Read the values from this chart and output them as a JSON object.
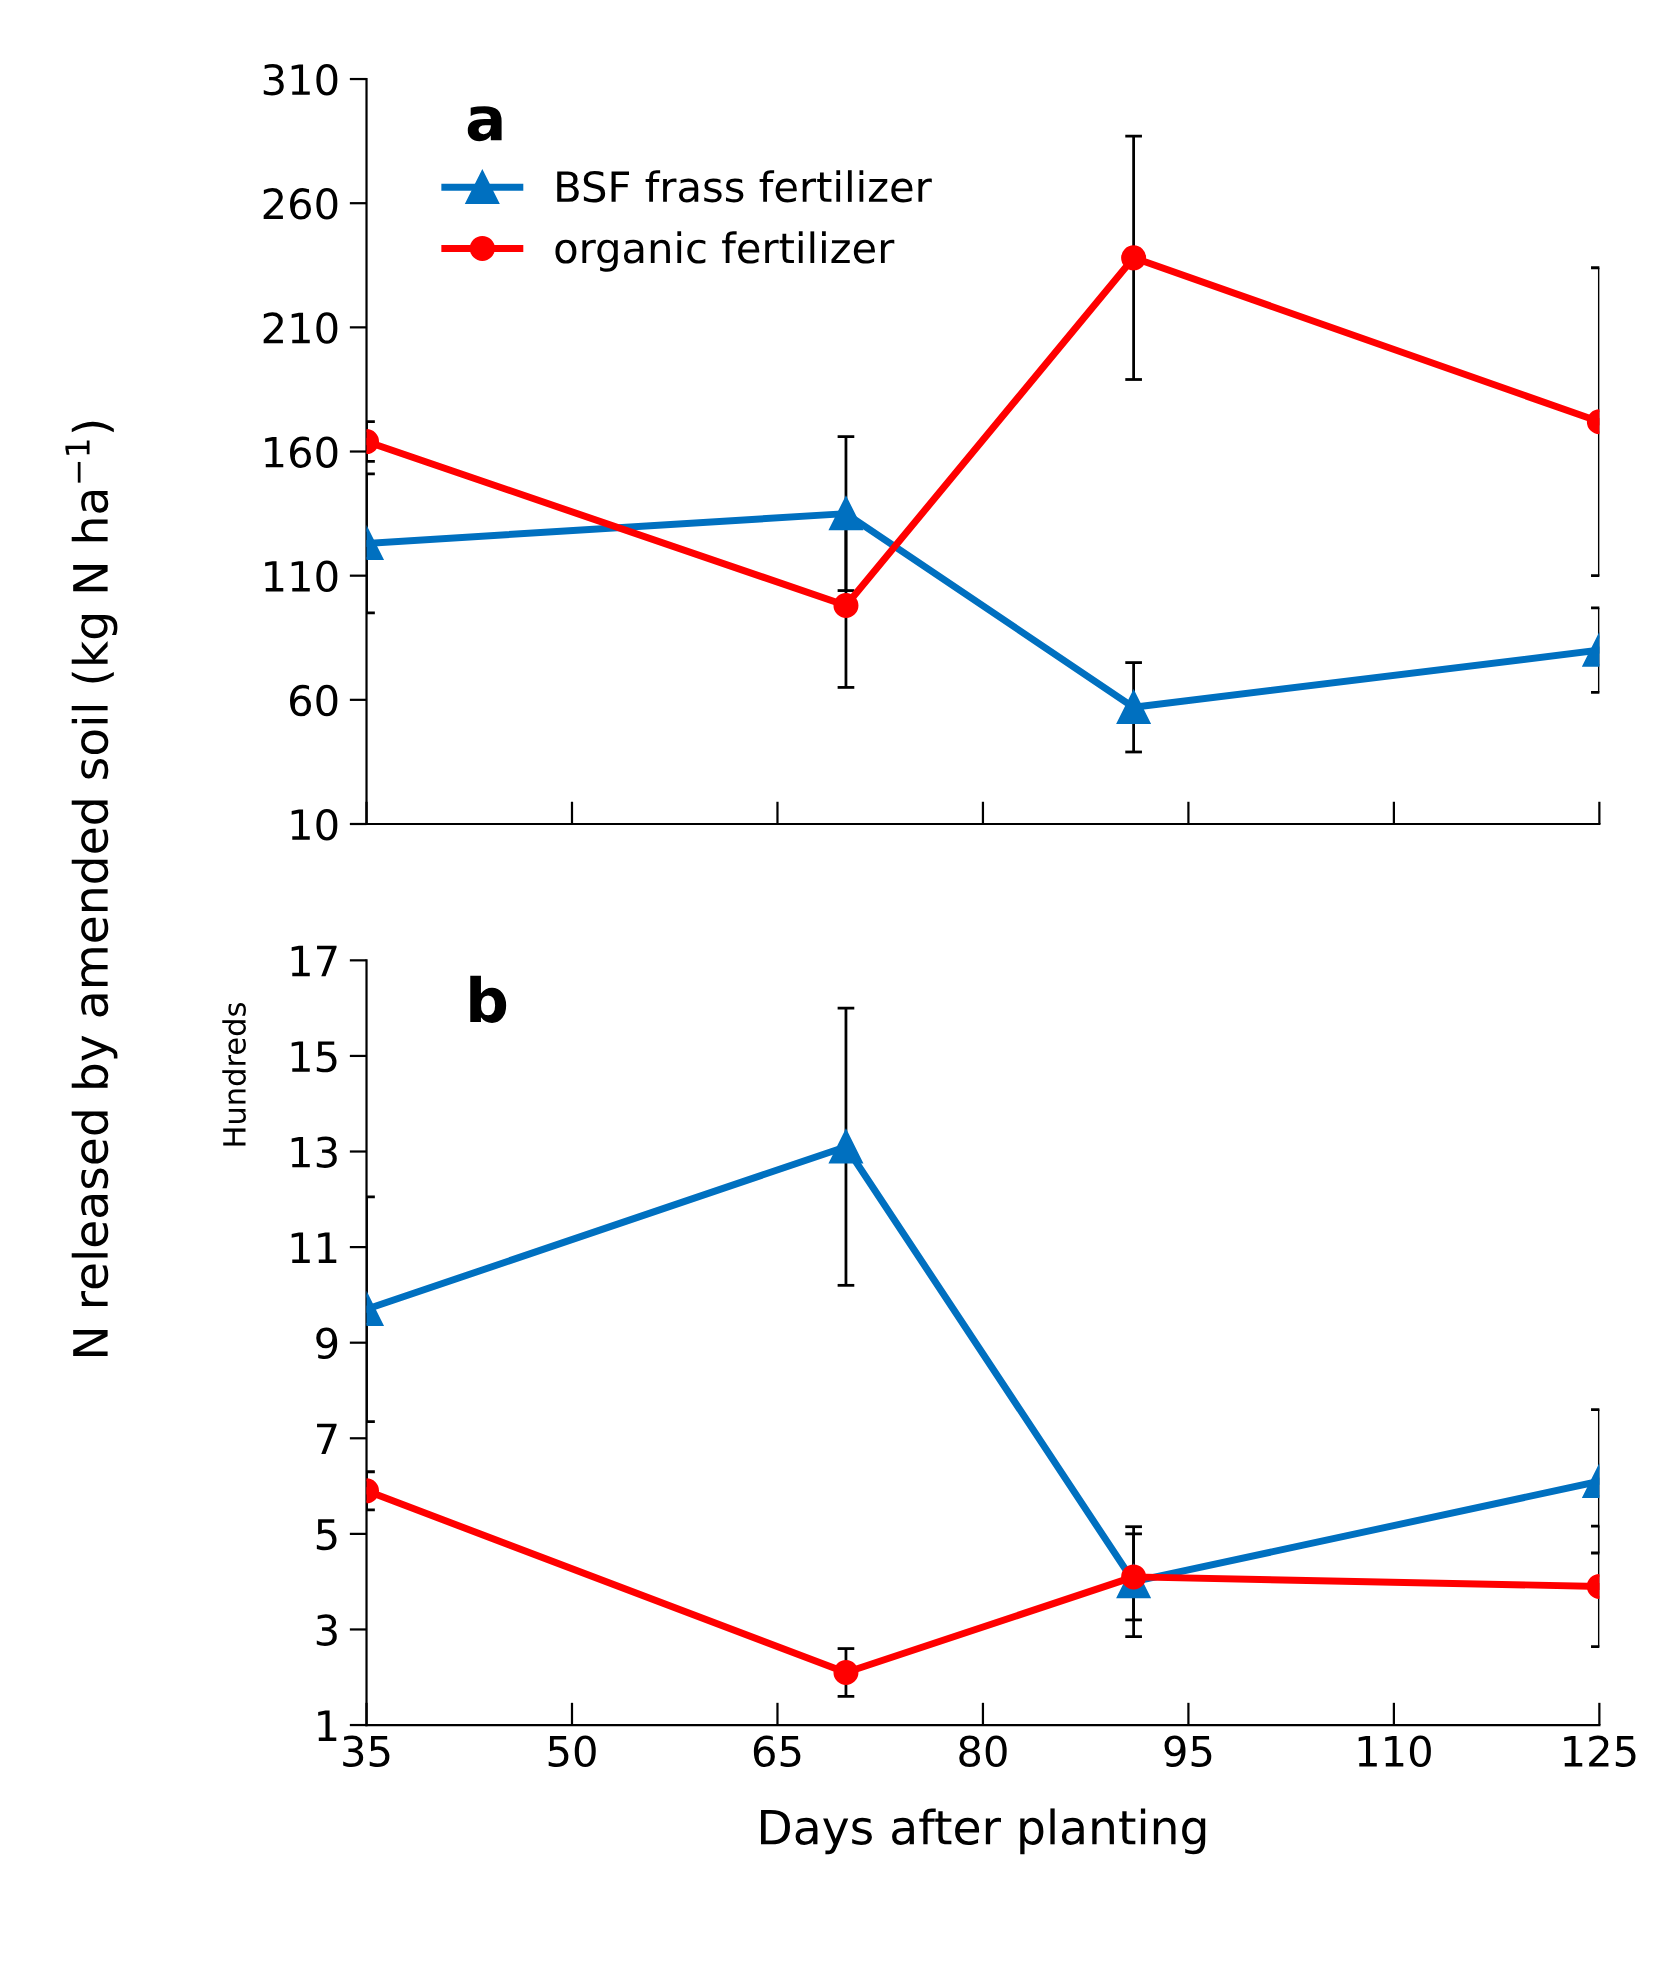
{
  "chart_data": [
    {
      "type": "line",
      "title": "a",
      "ylabel": "N released by amended soil (kg N ha$^{−1}$)",
      "x": [
        35,
        70,
        91,
        125
      ],
      "xlim": [
        35,
        125
      ],
      "xticks": [
        35,
        50,
        65,
        80,
        95,
        110,
        125
      ],
      "ylim": [
        10,
        310
      ],
      "yticks": [
        10,
        60,
        110,
        160,
        210,
        260,
        310
      ],
      "tick_labels": "y",
      "legend": "top left",
      "grid": false,
      "series": [
        {
          "name": "BSF frass fertilizer",
          "color": "#0070c0",
          "marker": "triangle",
          "values": [
            123,
            135,
            57,
            80
          ],
          "errors": [
            28,
            31,
            18,
            17
          ]
        },
        {
          "name": "organic fertilizer",
          "color": "#ff0000",
          "marker": "circle",
          "values": [
            164,
            98,
            238,
            172
          ],
          "errors": [
            8,
            33,
            49,
            62
          ]
        }
      ]
    },
    {
      "type": "line",
      "title": "b",
      "xlabel": "Days after planting",
      "annotations": [
        "Hundreds"
      ],
      "x": [
        35,
        70,
        91,
        125
      ],
      "xlim": [
        35,
        125
      ],
      "xticks": [
        35,
        50,
        65,
        80,
        95,
        110,
        125
      ],
      "ylim": [
        1,
        17
      ],
      "yticks": [
        1,
        3,
        5,
        7,
        9,
        11,
        13,
        15,
        17
      ],
      "grid": false,
      "series": [
        {
          "color": "#0070c0",
          "marker": "triangle",
          "values": [
            9.7,
            13.1,
            4.0,
            6.1
          ],
          "errors": [
            2.35,
            2.9,
            1.15,
            1.5
          ]
        },
        {
          "color": "#ff0000",
          "marker": "circle",
          "values": [
            5.9,
            2.1,
            4.1,
            3.9
          ],
          "errors": [
            0.4,
            0.5,
            0.9,
            1.26
          ]
        }
      ]
    }
  ]
}
